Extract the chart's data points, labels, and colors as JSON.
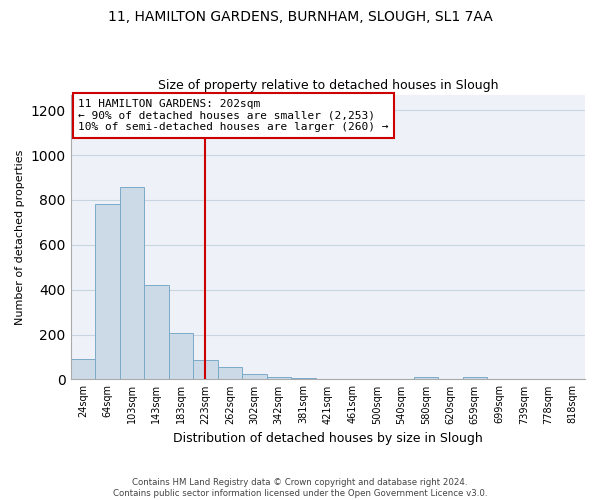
{
  "title_line1": "11, HAMILTON GARDENS, BURNHAM, SLOUGH, SL1 7AA",
  "title_line2": "Size of property relative to detached houses in Slough",
  "xlabel": "Distribution of detached houses by size in Slough",
  "ylabel": "Number of detached properties",
  "bar_labels": [
    "24sqm",
    "64sqm",
    "103sqm",
    "143sqm",
    "183sqm",
    "223sqm",
    "262sqm",
    "302sqm",
    "342sqm",
    "381sqm",
    "421sqm",
    "461sqm",
    "500sqm",
    "540sqm",
    "580sqm",
    "620sqm",
    "659sqm",
    "699sqm",
    "739sqm",
    "778sqm",
    "818sqm"
  ],
  "bar_values": [
    90,
    780,
    860,
    420,
    205,
    85,
    55,
    25,
    10,
    5,
    2,
    0,
    0,
    0,
    10,
    0,
    10,
    0,
    0,
    0,
    0
  ],
  "bar_color": "#ccdae8",
  "bar_edge_color": "#7aaac8",
  "vline_x_index": 5,
  "vline_color": "#cc0000",
  "annotation_lines": [
    "11 HAMILTON GARDENS: 202sqm",
    "← 90% of detached houses are smaller (2,253)",
    "10% of semi-detached houses are larger (260) →"
  ],
  "annotation_box_edge": "#cc0000",
  "ylim": [
    0,
    1270
  ],
  "yticks": [
    0,
    200,
    400,
    600,
    800,
    1000,
    1200
  ],
  "footer_line1": "Contains HM Land Registry data © Crown copyright and database right 2024.",
  "footer_line2": "Contains public sector information licensed under the Open Government Licence v3.0.",
  "bg_color": "#ffffff",
  "grid_color": "#c8d4e0",
  "plot_bg_color": "#eef2f8"
}
